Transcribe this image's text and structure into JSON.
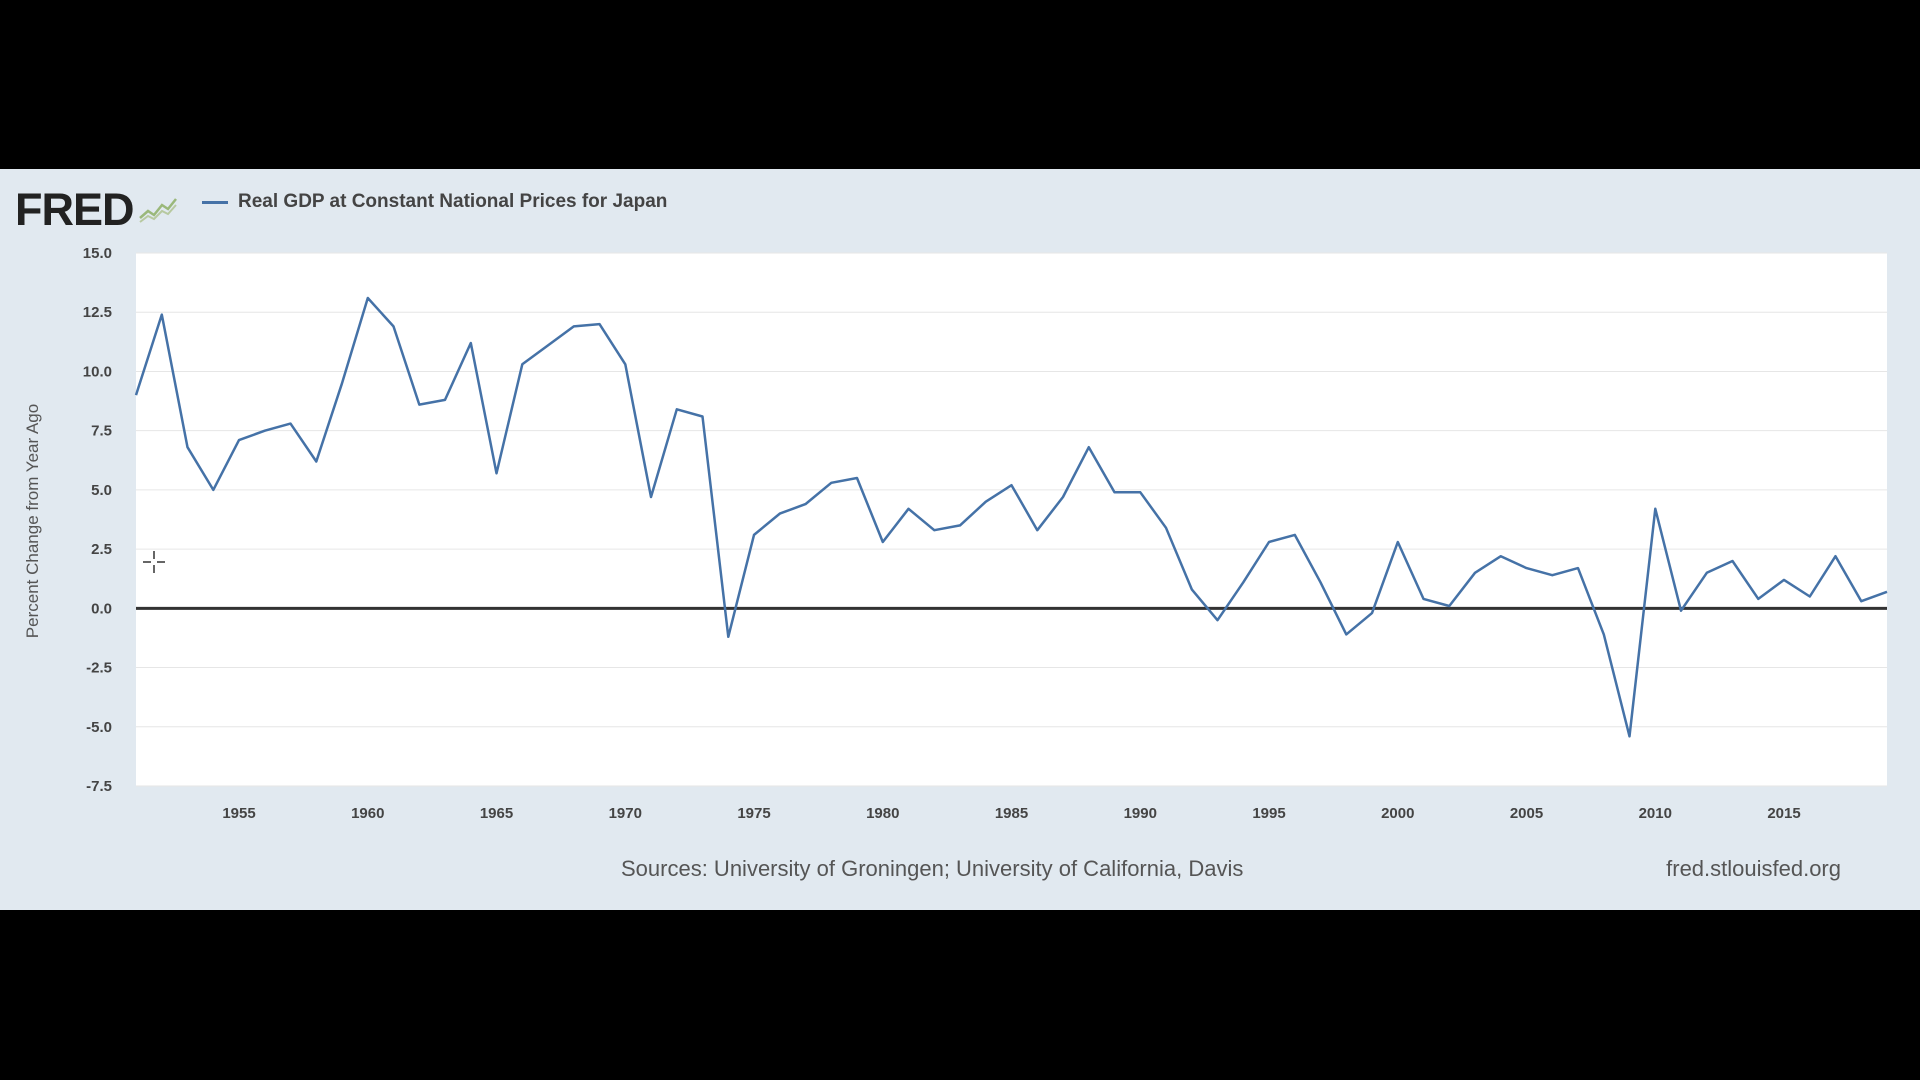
{
  "header": {
    "logo_text": "FRED",
    "legend_label": "Real GDP at Constant National Prices for Japan"
  },
  "footer": {
    "source": "Sources: University of Groningen; University of California, Davis",
    "site": "fred.stlouisfed.org"
  },
  "colors": {
    "series": "#4572a7",
    "panel_bg": "#e1e9f0",
    "plot_bg": "#ffffff",
    "zero_line": "#333333"
  },
  "chart_data": {
    "type": "line",
    "title": "",
    "xlabel": "",
    "ylabel": "Percent Change from Year Ago",
    "xlim": [
      1951,
      2019
    ],
    "ylim": [
      -7.5,
      15.0
    ],
    "y_ticks": [
      15.0,
      12.5,
      10.0,
      7.5,
      5.0,
      2.5,
      0.0,
      -2.5,
      -5.0,
      -7.5
    ],
    "y_tick_labels": [
      "15.0",
      "12.5",
      "10.0",
      "7.5",
      "5.0",
      "2.5",
      "0.0",
      "-2.5",
      "-5.0",
      "-7.5"
    ],
    "x_ticks": [
      1955,
      1960,
      1965,
      1970,
      1975,
      1980,
      1985,
      1990,
      1995,
      2000,
      2005,
      2010,
      2015
    ],
    "grid": true,
    "legend": "top-left",
    "series": [
      {
        "name": "Real GDP at Constant National Prices for Japan",
        "x": [
          1951,
          1952,
          1953,
          1954,
          1955,
          1956,
          1957,
          1958,
          1959,
          1960,
          1961,
          1962,
          1963,
          1964,
          1965,
          1966,
          1967,
          1968,
          1969,
          1970,
          1971,
          1972,
          1973,
          1974,
          1975,
          1976,
          1977,
          1978,
          1979,
          1980,
          1981,
          1982,
          1983,
          1984,
          1985,
          1986,
          1987,
          1988,
          1989,
          1990,
          1991,
          1992,
          1993,
          1994,
          1995,
          1996,
          1997,
          1998,
          1999,
          2000,
          2001,
          2002,
          2003,
          2004,
          2005,
          2006,
          2007,
          2008,
          2009,
          2010,
          2011,
          2012,
          2013,
          2014,
          2015,
          2016,
          2017,
          2018,
          2019
        ],
        "y": [
          9.0,
          12.4,
          6.8,
          5.0,
          7.1,
          7.5,
          7.8,
          6.2,
          9.5,
          13.1,
          11.9,
          8.6,
          8.8,
          11.2,
          5.7,
          10.3,
          11.1,
          11.9,
          12.0,
          10.3,
          4.7,
          8.4,
          8.1,
          -1.2,
          3.1,
          4.0,
          4.4,
          5.3,
          5.5,
          2.8,
          4.2,
          3.3,
          3.5,
          4.5,
          5.2,
          3.3,
          4.7,
          6.8,
          4.9,
          4.9,
          3.4,
          0.8,
          -0.5,
          1.1,
          2.8,
          3.1,
          1.1,
          -1.1,
          -0.2,
          2.8,
          0.4,
          0.1,
          1.5,
          2.2,
          1.7,
          1.4,
          1.7,
          -1.1,
          -5.4,
          4.2,
          -0.1,
          1.5,
          2.0,
          0.4,
          1.2,
          0.5,
          2.2,
          0.3,
          0.7
        ]
      }
    ]
  }
}
